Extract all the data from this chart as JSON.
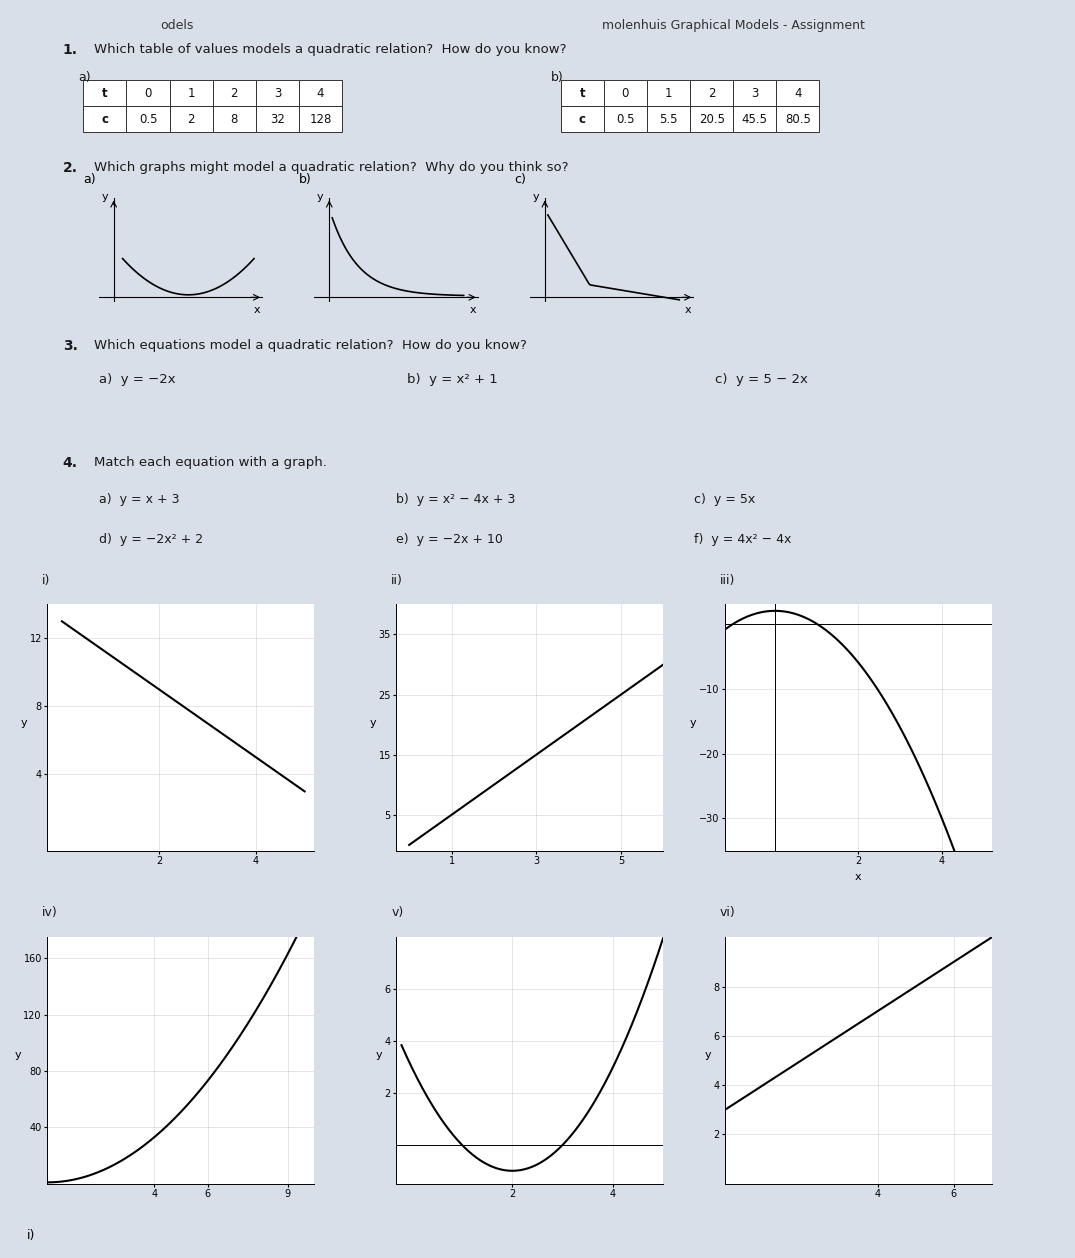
{
  "title": "molenhuis Graphical Models - Assignment",
  "bg_color": "#d8dfe8",
  "paper_color": "#edf0f5",
  "q1_text": "Which table of values models a quadratic relation?  How do you know?",
  "table_a_row1": [
    "t",
    "0",
    "1",
    "2",
    "3",
    "4"
  ],
  "table_a_row2": [
    "c",
    "0.5",
    "2",
    "8",
    "32",
    "128"
  ],
  "table_b_row1": [
    "t",
    "0",
    "1",
    "2",
    "3",
    "4"
  ],
  "table_b_row2": [
    "c",
    "0.5",
    "5.5",
    "20.5",
    "45.5",
    "80.5"
  ],
  "q2_text": "Which graphs might model a quadratic relation?  Why do you think so?",
  "q3_text": "Which equations model a quadratic relation?  How do you know?",
  "q3_a": "a)  y = −2x",
  "q3_b": "b)  y = x² + 1",
  "q3_c": "c)  y = 5 − 2x",
  "q4_text": "Match each equation with a graph.",
  "q4_a": "a)  y = x + 3",
  "q4_b": "b)  y = x² − 4x + 3",
  "q4_c": "c)  y = 5x",
  "q4_d": "d)  y = −2x² + 2",
  "q4_e": "e)  y = −2x + 10",
  "q4_f": "f)  y = 4x² − 4x",
  "g1_yticks": [
    4,
    8,
    12
  ],
  "g1_xticks": [
    2,
    4
  ],
  "g1_xlim": [
    -0.3,
    5.2
  ],
  "g1_ylim": [
    -0.5,
    14
  ],
  "g2_yticks": [
    5,
    15,
    25,
    35
  ],
  "g2_xticks": [
    1,
    3,
    5
  ],
  "g2_xlim": [
    -0.3,
    6.0
  ],
  "g2_ylim": [
    -1,
    40
  ],
  "g3_yticks": [
    -30,
    -20,
    -10
  ],
  "g3_xticks": [
    2,
    4
  ],
  "g3_xlim": [
    -1.2,
    5.2
  ],
  "g3_ylim": [
    -35,
    3
  ],
  "g4_yticks": [
    40,
    80,
    120,
    160
  ],
  "g4_xticks": [
    4,
    6,
    9
  ],
  "g4_xlim": [
    0,
    10
  ],
  "g4_ylim": [
    0,
    175
  ],
  "g5_yticks": [
    2,
    4,
    6
  ],
  "g5_xticks": [
    2,
    4
  ],
  "g5_xlim": [
    -0.3,
    5.0
  ],
  "g5_ylim": [
    -1.5,
    8
  ],
  "g6_yticks": [
    2,
    4,
    6,
    8
  ],
  "g6_xticks": [
    4,
    6
  ],
  "g6_xlim": [
    0,
    7
  ],
  "g6_ylim": [
    0,
    10
  ]
}
